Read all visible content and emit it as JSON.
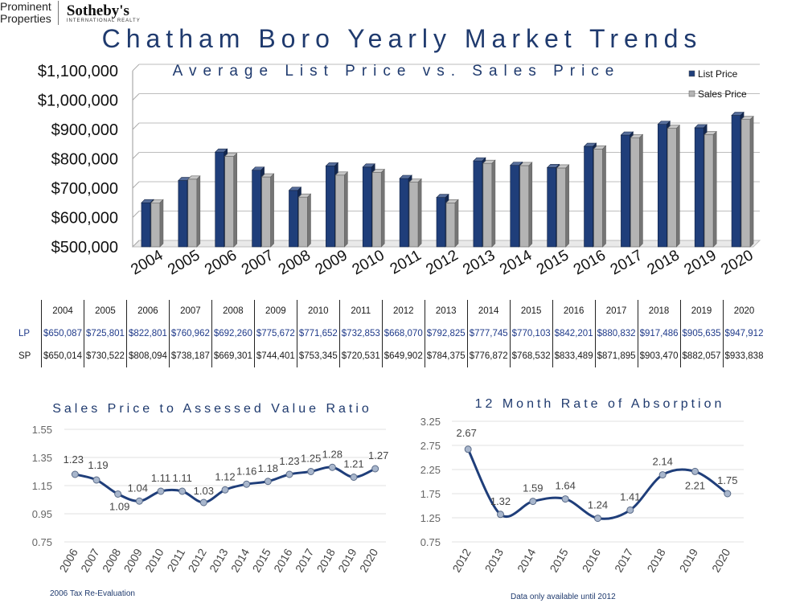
{
  "brand": {
    "left_line1": "Prominent",
    "left_line2": "Properties",
    "name": "Sotheby's",
    "sub": "INTERNATIONAL REALTY"
  },
  "page_title": "Chatham Boro Yearly Market Trends",
  "table": {
    "years": [
      "2004",
      "2005",
      "2006",
      "2007",
      "2008",
      "2009",
      "2010",
      "2011",
      "2012",
      "2013",
      "2014",
      "2015",
      "2016",
      "2017",
      "2018",
      "2019",
      "2020"
    ],
    "rows": [
      {
        "label": "LP",
        "cells": [
          "$650,087",
          "$725,801",
          "$822,801",
          "$760,962",
          "$692,260",
          "$775,672",
          "$771,652",
          "$732,853",
          "$668,070",
          "$792,825",
          "$777,745",
          "$770,103",
          "$842,201",
          "$880,832",
          "$917,486",
          "$905,635",
          "$947,912"
        ]
      },
      {
        "label": "SP",
        "cells": [
          "$650,014",
          "$730,522",
          "$808,094",
          "$738,187",
          "$669,301",
          "$744,401",
          "$753,345",
          "$720,531",
          "$649,902",
          "$784,375",
          "$776,872",
          "$768,532",
          "$833,489",
          "$871,895",
          "$903,470",
          "$882,057",
          "$933,838"
        ]
      }
    ]
  },
  "notes": {
    "ratio": "2006 Tax Re-Evaluation",
    "absorption": "Data only available until 2012"
  },
  "chart_data": [
    {
      "type": "bar",
      "title": "Average List Price vs. Sales Price",
      "categories": [
        "2004",
        "2005",
        "2006",
        "2007",
        "2008",
        "2009",
        "2010",
        "2011",
        "2012",
        "2013",
        "2014",
        "2015",
        "2016",
        "2017",
        "2018",
        "2019",
        "2020"
      ],
      "series": [
        {
          "name": "List Price",
          "color": "#1f3e7a",
          "values": [
            650087,
            725801,
            822801,
            760962,
            692260,
            775672,
            771652,
            732853,
            668070,
            792825,
            777745,
            770103,
            842201,
            880832,
            917486,
            905635,
            947912
          ]
        },
        {
          "name": "Sales Price",
          "color": "#b4b4b4",
          "values": [
            650014,
            730522,
            808094,
            738187,
            669301,
            744401,
            753345,
            720531,
            649902,
            784375,
            776872,
            768532,
            833489,
            871895,
            903470,
            882057,
            933838
          ]
        }
      ],
      "ylim": [
        500000,
        1100000
      ],
      "yticks": [
        "$500,000",
        "$600,000",
        "$700,000",
        "$800,000",
        "$900,000",
        "$1,000,000",
        "$1,100,000"
      ],
      "legend": "top-right",
      "grid": true
    },
    {
      "type": "line",
      "title": "Sales Price to Assessed Value Ratio",
      "x": [
        "2006",
        "2007",
        "2008",
        "2009",
        "2010",
        "2011",
        "2012",
        "2013",
        "2014",
        "2015",
        "2016",
        "2017",
        "2018",
        "2019",
        "2020"
      ],
      "values": [
        1.23,
        1.19,
        1.09,
        1.04,
        1.11,
        1.11,
        1.03,
        1.12,
        1.16,
        1.18,
        1.23,
        1.25,
        1.28,
        1.21,
        1.27
      ],
      "labels": [
        "1.23",
        "1.19",
        "1.09",
        "1.04",
        "1.11",
        "1.11",
        "1.03",
        "1.12",
        "1.16",
        "1.18",
        "1.23",
        "1.25",
        "1.28",
        "1.21",
        "1.27"
      ],
      "ylim": [
        0.75,
        1.55
      ],
      "yticks": [
        "0.75",
        "0.95",
        "1.15",
        "1.35",
        "1.55"
      ],
      "color": "#1f3e7a",
      "grid": true
    },
    {
      "type": "line",
      "title": "12 Month Rate of Absorption",
      "x": [
        "2012",
        "2013",
        "2014",
        "2015",
        "2016",
        "2017",
        "2018",
        "2019",
        "2020"
      ],
      "values": [
        2.67,
        1.32,
        1.59,
        1.64,
        1.24,
        1.41,
        2.14,
        2.21,
        1.75
      ],
      "labels": [
        "2.67",
        "1.32",
        "1.59",
        "1.64",
        "1.24",
        "1.41",
        "2.14",
        "2.21",
        "1.75"
      ],
      "ylim": [
        0.75,
        3.25
      ],
      "yticks": [
        "0.75",
        "1.25",
        "1.75",
        "2.25",
        "2.75",
        "3.25"
      ],
      "color": "#1f3e7a",
      "grid": true
    }
  ]
}
